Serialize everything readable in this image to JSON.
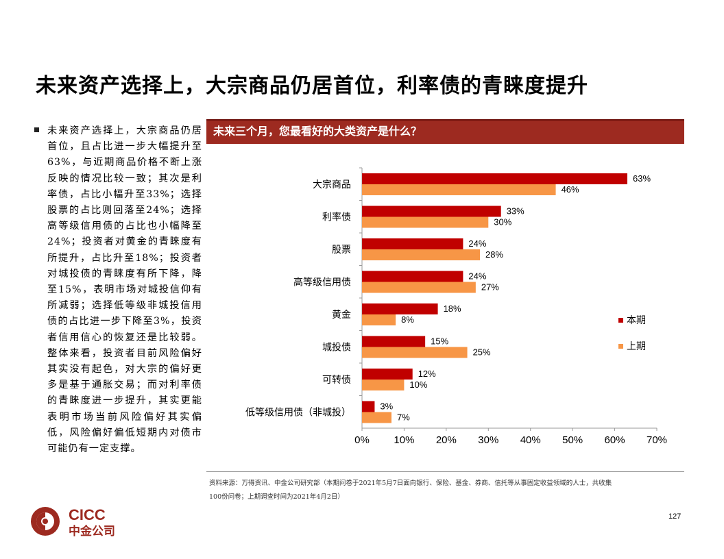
{
  "page": {
    "title": "未来资产选择上，大宗商品仍居首位，利率债的青睐度提升",
    "bullet": "未来资产选择上，大宗商品仍居首位，且占比进一步大幅提升至63%，与近期商品价格不断上涨反映的情况比较一致；其次是利率债，占比小幅升至33%；选择股票的占比则回落至24%；选择高等级信用债的占比也小幅降至24%；投资者对黄金的青睐度有所提升，占比升至18%；投资者对城投债的青睐度有所下降，降至15%，表明市场对城投信仰有所减弱；选择低等级非城投信用债的占比进一步下降至3%，投资者信用信心的恢复还是比较弱。整体来看，投资者目前风险偏好其实没有起色，对大宗的偏好更多是基于通胀交易；而对利率债的青睐度进一步提升，其实更能表明市场当前风险偏好其实偏低，风险偏好偏低短期内对债市可能仍有一定支撑。",
    "chart_header": "未来三个月，您最看好的大类资产是什么？",
    "source_line1": "资料来源：万得资讯、中金公司研究部（本期问卷于2021年5月7日面向银行、保险、基金、券商、信托等从事固定收益领域的人士，共收集",
    "source_line2": "100份问卷；上期调查时间为2021年4月2日）",
    "page_number": "127",
    "logo": {
      "en": "CICC",
      "cn": "中金公司"
    }
  },
  "colors": {
    "current": "#c00000",
    "previous": "#f79646",
    "header": "#9d2a20",
    "logo": "#9d2a20"
  },
  "chart_data": {
    "type": "bar",
    "orientation": "horizontal",
    "categories": [
      "大宗商品",
      "利率债",
      "股票",
      "高等级信用债",
      "黄金",
      "城投债",
      "可转债",
      "低等级信用债（非城投）"
    ],
    "series": [
      {
        "name": "本期",
        "values": [
          63,
          33,
          24,
          24,
          18,
          15,
          12,
          3
        ],
        "labels": [
          "63%",
          "33%",
          "24%",
          "24%",
          "18%",
          "15%",
          "12%",
          "3%"
        ]
      },
      {
        "name": "上期",
        "values": [
          46,
          30,
          28,
          27,
          8,
          25,
          10,
          7
        ],
        "labels": [
          "46%",
          "30%",
          "28%",
          "27%",
          "8%",
          "25%",
          "10%",
          "7%"
        ]
      }
    ],
    "xlim": [
      0,
      70
    ],
    "xticks": [
      0,
      10,
      20,
      30,
      40,
      50,
      60,
      70
    ],
    "xtick_labels": [
      "0%",
      "10%",
      "20%",
      "30%",
      "40%",
      "50%",
      "60%",
      "70%"
    ],
    "legend": "right",
    "grid": false
  }
}
